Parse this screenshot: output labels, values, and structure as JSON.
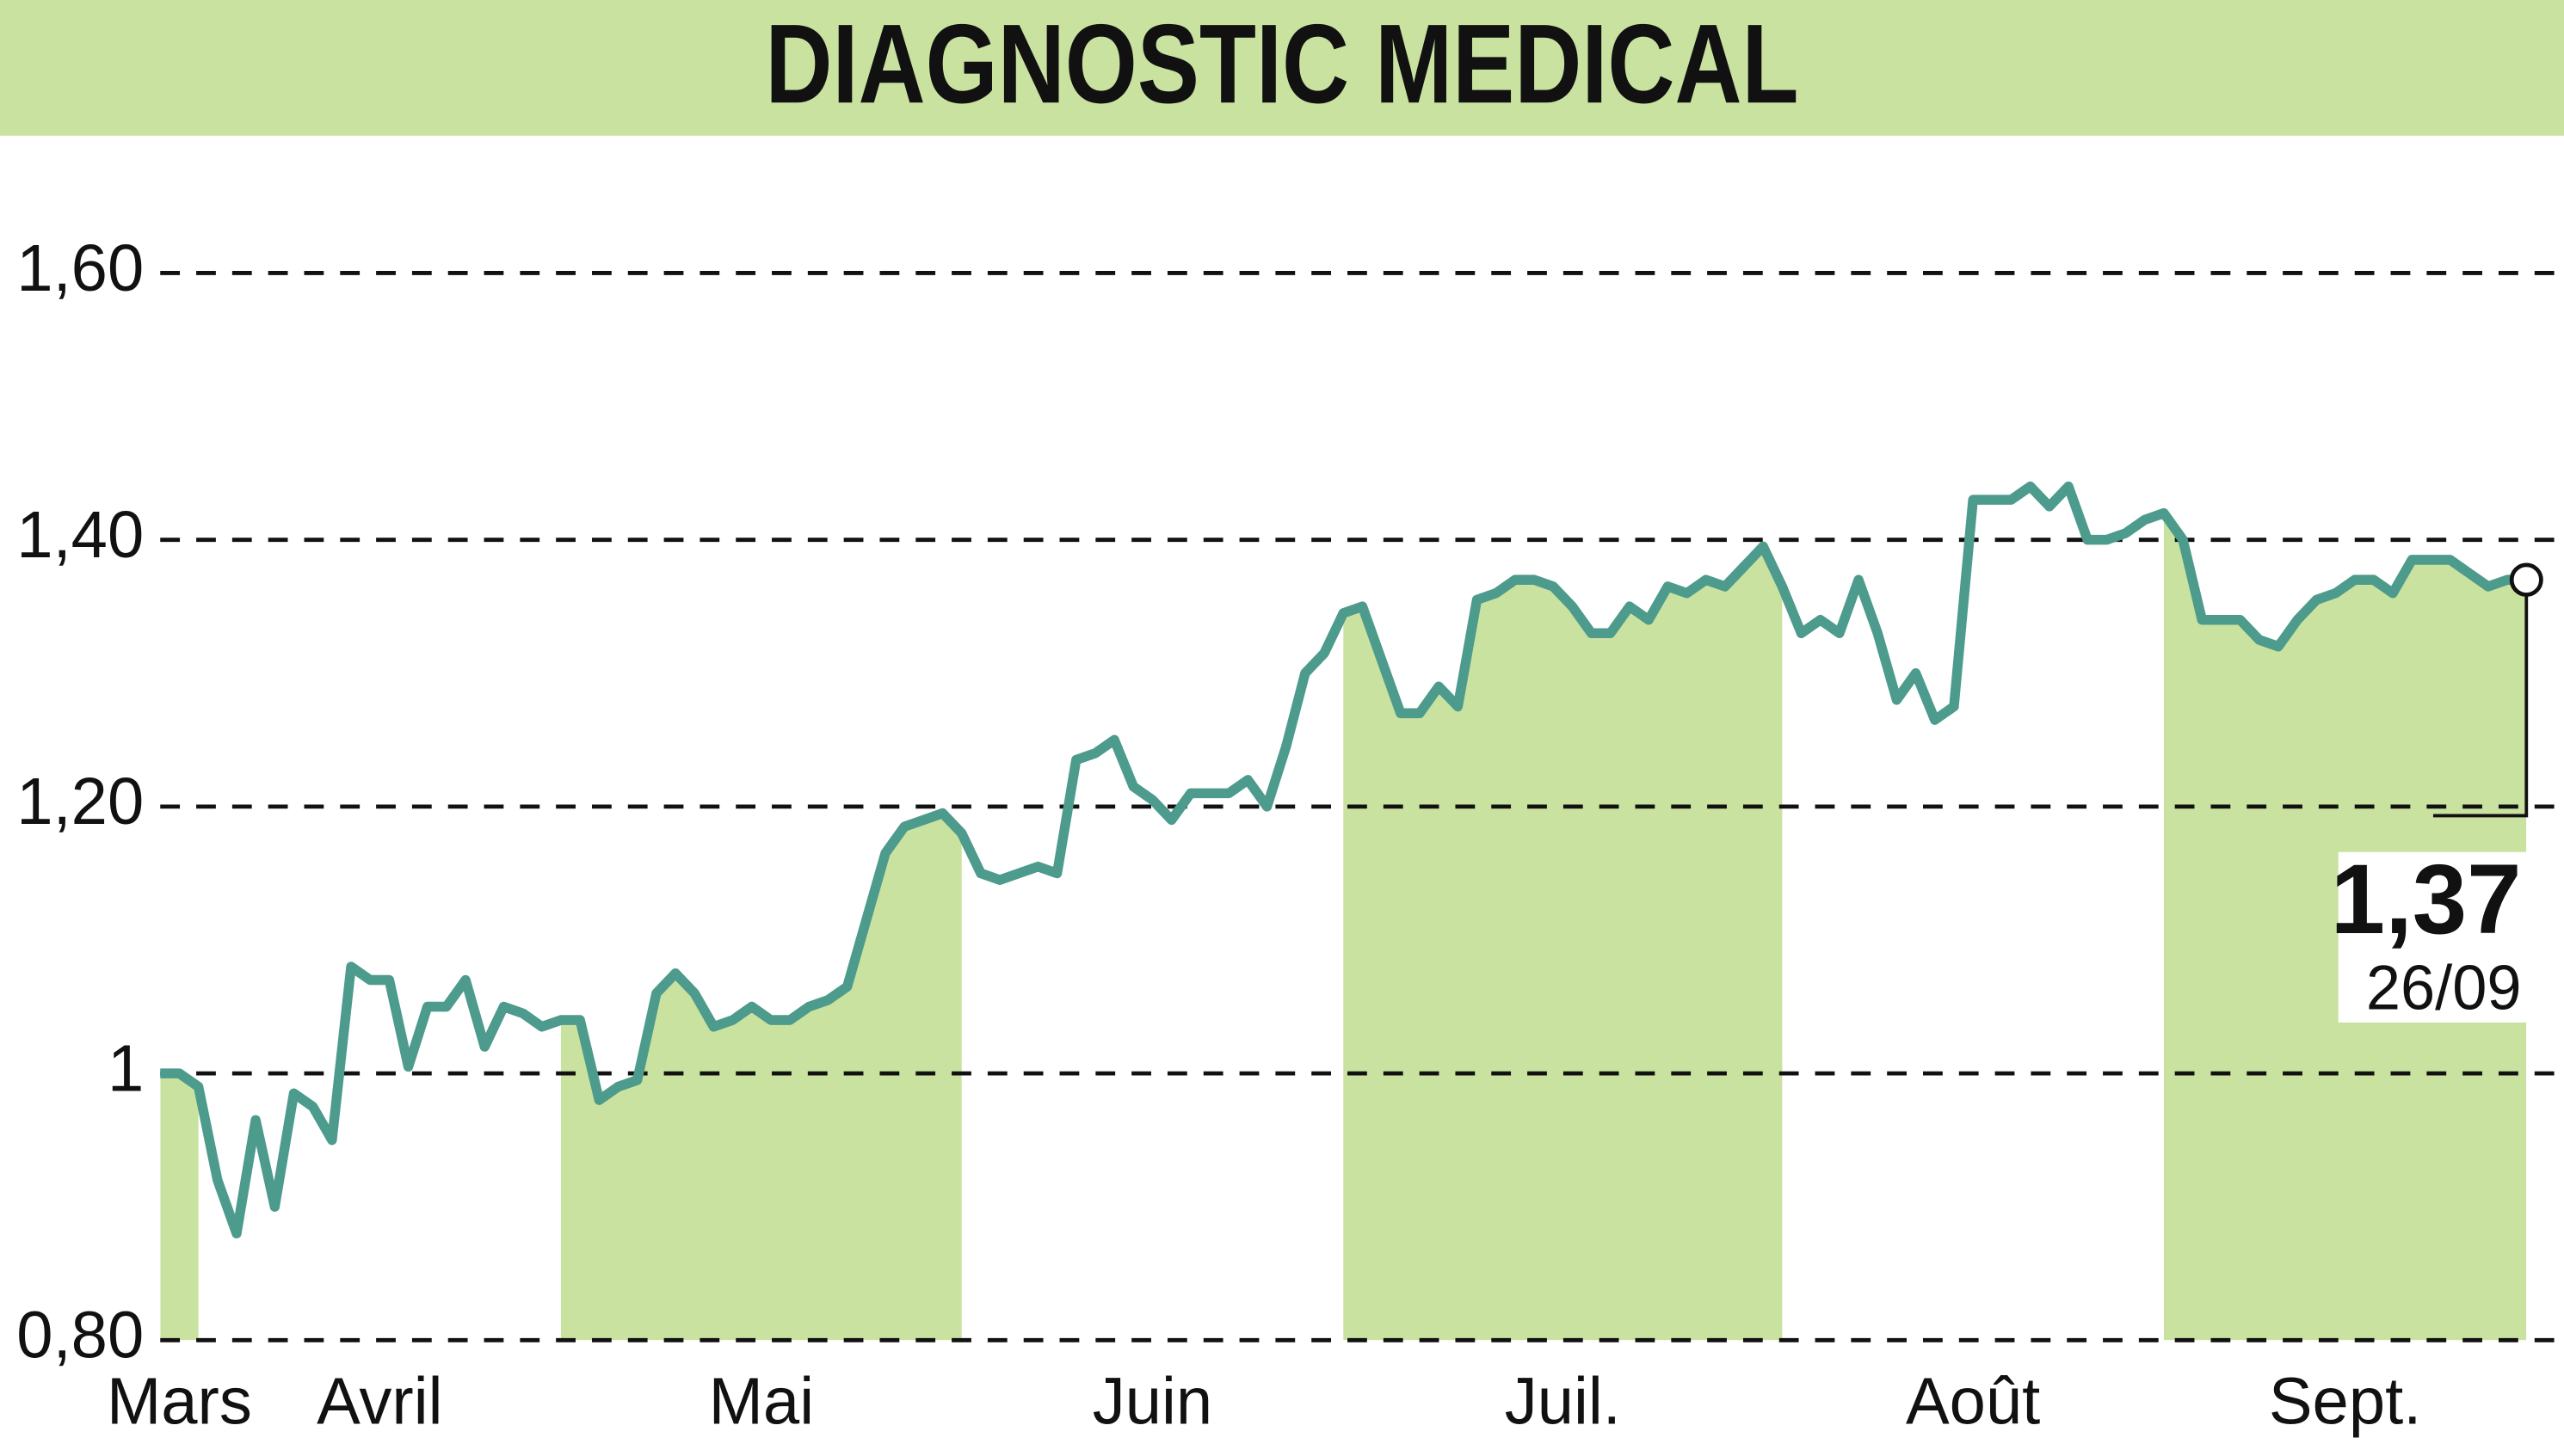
{
  "chart_data": {
    "type": "line",
    "title": "DIAGNOSTIC MEDICAL",
    "series": [
      {
        "name": "DIAGNOSTIC MEDICAL",
        "color": "#4d9b8c",
        "values": [
          1.0,
          1.0,
          0.99,
          0.92,
          0.88,
          0.965,
          0.9,
          0.985,
          0.975,
          0.95,
          1.08,
          1.07,
          1.07,
          1.005,
          1.05,
          1.05,
          1.07,
          1.02,
          1.05,
          1.045,
          1.035,
          1.04,
          1.04,
          0.98,
          0.99,
          0.995,
          1.06,
          1.075,
          1.06,
          1.035,
          1.04,
          1.05,
          1.04,
          1.04,
          1.05,
          1.055,
          1.065,
          1.115,
          1.165,
          1.185,
          1.19,
          1.195,
          1.18,
          1.15,
          1.145,
          1.15,
          1.155,
          1.15,
          1.235,
          1.24,
          1.25,
          1.215,
          1.205,
          1.19,
          1.21,
          1.21,
          1.21,
          1.22,
          1.2,
          1.245,
          1.3,
          1.315,
          1.345,
          1.35,
          1.31,
          1.27,
          1.27,
          1.29,
          1.275,
          1.355,
          1.36,
          1.37,
          1.37,
          1.365,
          1.35,
          1.33,
          1.33,
          1.35,
          1.34,
          1.365,
          1.36,
          1.37,
          1.365,
          1.38,
          1.395,
          1.365,
          1.33,
          1.34,
          1.33,
          1.37,
          1.33,
          1.28,
          1.3,
          1.265,
          1.275,
          1.43,
          1.43,
          1.43,
          1.44,
          1.425,
          1.44,
          1.4,
          1.4,
          1.405,
          1.415,
          1.42,
          1.4,
          1.34,
          1.34,
          1.34,
          1.325,
          1.32,
          1.34,
          1.355,
          1.36,
          1.37,
          1.37,
          1.36,
          1.385,
          1.385,
          1.385,
          1.375,
          1.365,
          1.37,
          1.37
        ]
      }
    ],
    "fill_color": "#c9e2a0",
    "xlim": [
      0,
      124
    ],
    "xticks": [
      {
        "value": 0,
        "label": "Mars"
      },
      {
        "value": 2,
        "label": "Avril"
      },
      {
        "value": 21,
        "label": "Mai"
      },
      {
        "value": 42,
        "label": "Juin"
      },
      {
        "value": 62,
        "label": "Juil."
      },
      {
        "value": 85,
        "label": "Août"
      },
      {
        "value": 105,
        "label": "Sept."
      }
    ],
    "ylim": [
      0.8,
      1.6
    ],
    "yticks": [
      {
        "value": 0.8,
        "label": "0,80"
      },
      1,
      {
        "value": 1.2,
        "label": "1,20"
      },
      {
        "value": 1.4,
        "label": "1,40"
      },
      {
        "value": 1.6,
        "label": "1,60"
      }
    ],
    "grid": true,
    "last_value_label": "1,37",
    "last_date": "26/09"
  }
}
